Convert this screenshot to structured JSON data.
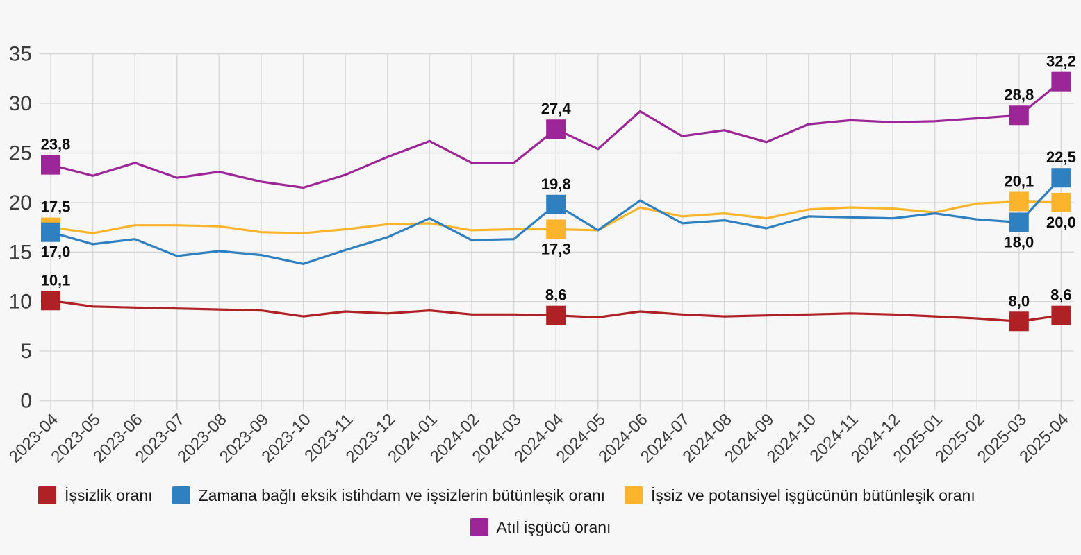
{
  "legend": {
    "items": [
      {
        "label": "İşsizlik oranı",
        "color": "#b02125",
        "key": "issizlik-orani"
      },
      {
        "label": "Zamana bağlı eksik istihdam ve işsizlerin bütünleşik oranı",
        "color": "#2f80c0",
        "key": "zamana-bagli-eksik-istihdam"
      },
      {
        "label": "İşsiz ve potansiyel işgücünün bütünleşik oranı",
        "color": "#fbb42c",
        "key": "issiz-ve-potansiyel-isgucu"
      },
      {
        "label": "Atıl işgücü oranı",
        "color": "#9c2598",
        "key": "atil-isgucu-orani"
      }
    ]
  },
  "chart_data": {
    "type": "line",
    "title": "",
    "xlabel": "",
    "ylabel": "",
    "ylim": [
      0,
      35
    ],
    "yticks": [
      0,
      5,
      10,
      15,
      20,
      25,
      30,
      35
    ],
    "grid": true,
    "legend_position": "bottom",
    "x": [
      "2023-04",
      "2023-05",
      "2023-06",
      "2023-07",
      "2023-08",
      "2023-09",
      "2023-10",
      "2023-11",
      "2023-12",
      "2024-01",
      "2024-02",
      "2024-03",
      "2024-04",
      "2024-05",
      "2024-06",
      "2024-07",
      "2024-08",
      "2024-09",
      "2024-10",
      "2024-11",
      "2024-12",
      "2025-01",
      "2025-02",
      "2025-03",
      "2025-04"
    ],
    "series": [
      {
        "name": "İşsizlik oranı",
        "key": "issizlik-orani",
        "color": "#b02125",
        "values": [
          10.1,
          9.5,
          9.4,
          9.3,
          9.2,
          9.1,
          8.5,
          9.0,
          8.8,
          9.1,
          8.7,
          8.7,
          8.6,
          8.4,
          9.0,
          8.7,
          8.5,
          8.6,
          8.7,
          8.8,
          8.7,
          8.5,
          8.3,
          8.0,
          8.6
        ]
      },
      {
        "name": "Atıl işgücü oranı",
        "key": "atil-isgucu-orani",
        "color": "#9c2598",
        "values": [
          23.8,
          22.7,
          24.0,
          22.5,
          23.1,
          22.1,
          21.5,
          22.8,
          24.6,
          26.2,
          24.0,
          24.0,
          27.4,
          25.4,
          29.2,
          26.7,
          27.3,
          26.1,
          27.9,
          28.3,
          28.1,
          28.2,
          28.5,
          28.8,
          32.2
        ]
      },
      {
        "name": "İşsiz ve potansiyel işgücünün bütünleşik oranı",
        "key": "issiz-ve-potansiyel-isgucu",
        "color": "#fbb42c",
        "values": [
          17.5,
          16.9,
          17.7,
          17.7,
          17.6,
          17.0,
          16.9,
          17.3,
          17.8,
          17.9,
          17.2,
          17.3,
          17.3,
          17.2,
          19.5,
          18.6,
          18.9,
          18.4,
          19.3,
          19.5,
          19.4,
          19.0,
          19.9,
          20.1,
          20.0
        ]
      },
      {
        "name": "Zamana bağlı eksik istihdam ve işsizlerin bütünleşik oranı",
        "key": "zamana-bagli-eksik-istihdam",
        "color": "#2f80c0",
        "values": [
          17.0,
          15.8,
          16.3,
          14.6,
          15.1,
          14.7,
          13.8,
          15.2,
          16.5,
          18.4,
          16.2,
          16.3,
          19.8,
          17.2,
          20.2,
          17.9,
          18.2,
          17.4,
          18.6,
          18.5,
          18.4,
          18.9,
          18.3,
          18.0,
          22.5
        ]
      }
    ],
    "highlighted_x": [
      "2023-04",
      "2024-04",
      "2025-03",
      "2025-04"
    ],
    "callouts": [
      {
        "si": 1,
        "x": "2023-04",
        "label": "23,8",
        "pos": "above"
      },
      {
        "si": 2,
        "x": "2023-04",
        "label": "17,5",
        "pos": "above"
      },
      {
        "si": 3,
        "x": "2023-04",
        "label": "17,0",
        "pos": "below"
      },
      {
        "si": 0,
        "x": "2023-04",
        "label": "10,1",
        "pos": "above"
      },
      {
        "si": 1,
        "x": "2024-04",
        "label": "27,4",
        "pos": "above"
      },
      {
        "si": 3,
        "x": "2024-04",
        "label": "19,8",
        "pos": "above"
      },
      {
        "si": 2,
        "x": "2024-04",
        "label": "17,3",
        "pos": "below"
      },
      {
        "si": 0,
        "x": "2024-04",
        "label": "8,6",
        "pos": "above"
      },
      {
        "si": 1,
        "x": "2025-03",
        "label": "28,8",
        "pos": "above"
      },
      {
        "si": 2,
        "x": "2025-03",
        "label": "20,1",
        "pos": "above"
      },
      {
        "si": 3,
        "x": "2025-03",
        "label": "18,0",
        "pos": "below"
      },
      {
        "si": 0,
        "x": "2025-03",
        "label": "8,0",
        "pos": "above"
      },
      {
        "si": 1,
        "x": "2025-04",
        "label": "32,2",
        "pos": "above"
      },
      {
        "si": 3,
        "x": "2025-04",
        "label": "22,5",
        "pos": "above"
      },
      {
        "si": 2,
        "x": "2025-04",
        "label": "20,0",
        "pos": "below"
      },
      {
        "si": 0,
        "x": "2025-04",
        "label": "8,6",
        "pos": "above"
      }
    ],
    "colors": {
      "background": "#f7f7f8",
      "gridline": "#d8d8d8",
      "axis_text": "#3c3c3c",
      "data_label": "#0d0d0d"
    }
  }
}
